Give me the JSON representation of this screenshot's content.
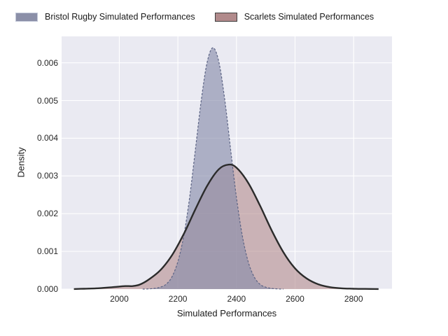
{
  "legend": {
    "position": "top",
    "items": [
      {
        "label": "Bristol Rugby Simulated Performances",
        "swatch_fill": "#8b8fa8",
        "swatch_border": "#c2c8d8"
      },
      {
        "label": "Scarlets Simulated Performances",
        "swatch_fill": "#b18a8b",
        "swatch_border": "#404040"
      }
    ]
  },
  "chart_data": {
    "type": "area",
    "subtype": "kde-density",
    "title": "",
    "xlabel": "Simulated Performances",
    "ylabel": "Density",
    "xlim": [
      1803,
      2931
    ],
    "ylim": [
      0,
      0.0067
    ],
    "x_tick_labels": [
      "2000",
      "2200",
      "2400",
      "2600",
      "2800"
    ],
    "y_tick_labels": [
      "0.000",
      "0.001",
      "0.002",
      "0.003",
      "0.004",
      "0.005",
      "0.006"
    ],
    "grid": true,
    "plot_bg": "#eaeaf2",
    "grid_color": "#ffffff",
    "series": [
      {
        "name": "Bristol Rugby Simulated Performances",
        "fill": "rgba(134,139,170,0.62)",
        "line_color": "#5b6384",
        "line_width": 1.2,
        "line_dash": "3,2.2",
        "peak": {
          "x": 2320,
          "density": 0.0064
        },
        "points": [
          [
            2080,
            0
          ],
          [
            2100,
            5e-06
          ],
          [
            2120,
            2e-05
          ],
          [
            2140,
            5e-05
          ],
          [
            2160,
            0.00013
          ],
          [
            2180,
            0.00033
          ],
          [
            2200,
            0.00073
          ],
          [
            2220,
            0.00141
          ],
          [
            2240,
            0.00243
          ],
          [
            2260,
            0.00371
          ],
          [
            2280,
            0.00502
          ],
          [
            2300,
            0.00602
          ],
          [
            2320,
            0.0064
          ],
          [
            2340,
            0.00602
          ],
          [
            2360,
            0.00502
          ],
          [
            2380,
            0.00371
          ],
          [
            2400,
            0.00243
          ],
          [
            2420,
            0.00141
          ],
          [
            2440,
            0.00073
          ],
          [
            2460,
            0.00033
          ],
          [
            2480,
            0.00013
          ],
          [
            2500,
            5e-05
          ],
          [
            2520,
            2e-05
          ],
          [
            2540,
            5e-06
          ],
          [
            2560,
            0
          ]
        ]
      },
      {
        "name": "Scarlets Simulated Performances",
        "fill": "rgba(175,132,133,0.55)",
        "line_color": "#2b2b2b",
        "line_width": 2.4,
        "line_dash": "",
        "peak": {
          "x": 2373,
          "density": 0.0033
        },
        "points": [
          [
            1845,
            2e-06
          ],
          [
            1880,
            1e-05
          ],
          [
            1920,
            2e-05
          ],
          [
            1960,
            4e-05
          ],
          [
            1990,
            6e-05
          ],
          [
            2020,
            8e-05
          ],
          [
            2045,
            8e-05
          ],
          [
            2070,
            0.00012
          ],
          [
            2100,
            0.00025
          ],
          [
            2140,
            0.0005
          ],
          [
            2180,
            0.0009
          ],
          [
            2220,
            0.00146
          ],
          [
            2260,
            0.00212
          ],
          [
            2300,
            0.00274
          ],
          [
            2340,
            0.00318
          ],
          [
            2373,
            0.0033
          ],
          [
            2400,
            0.00322
          ],
          [
            2440,
            0.00282
          ],
          [
            2480,
            0.00222
          ],
          [
            2520,
            0.00156
          ],
          [
            2560,
            0.00098
          ],
          [
            2600,
            0.00055
          ],
          [
            2640,
            0.00028
          ],
          [
            2680,
            0.000125
          ],
          [
            2720,
            5e-05
          ],
          [
            2760,
            2e-05
          ],
          [
            2800,
            1e-05
          ],
          [
            2840,
            5e-06
          ],
          [
            2885,
            2e-06
          ]
        ]
      }
    ]
  }
}
